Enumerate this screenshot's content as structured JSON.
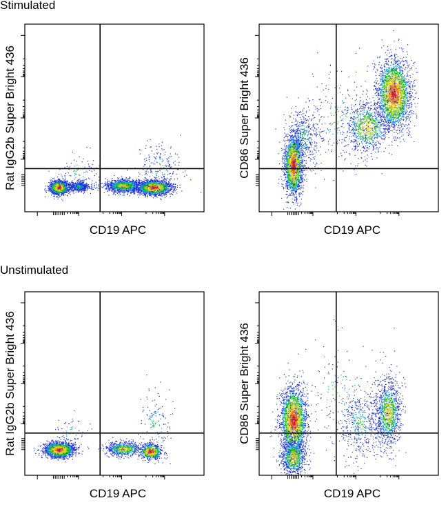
{
  "sections": [
    {
      "title": "Stimulated"
    },
    {
      "title": "Unstimulated"
    }
  ],
  "chart_data": [
    {
      "type": "scatter",
      "section": "Stimulated",
      "xlabel": "CD19 APC",
      "ylabel": "Rat IgG2b Super Bright 436",
      "scale": "log",
      "quadrant_gate": {
        "x": 0.42,
        "y": 0.77
      },
      "populations": [
        {
          "cx": 0.19,
          "cy": 0.87,
          "sx": 0.025,
          "sy": 0.018,
          "n": 1700,
          "density": "high"
        },
        {
          "cx": 0.3,
          "cy": 0.865,
          "sx": 0.03,
          "sy": 0.014,
          "n": 500,
          "density": "low"
        },
        {
          "cx": 0.55,
          "cy": 0.86,
          "sx": 0.05,
          "sy": 0.017,
          "n": 1200,
          "density": "medium"
        },
        {
          "cx": 0.72,
          "cy": 0.87,
          "sx": 0.045,
          "sy": 0.018,
          "n": 2000,
          "density": "high"
        },
        {
          "cx": 0.75,
          "cy": 0.76,
          "sx": 0.06,
          "sy": 0.06,
          "n": 200,
          "density": "low"
        },
        {
          "cx": 0.3,
          "cy": 0.78,
          "sx": 0.06,
          "sy": 0.05,
          "n": 80,
          "density": "low"
        }
      ]
    },
    {
      "type": "scatter",
      "section": "Stimulated",
      "xlabel": "CD19 APC",
      "ylabel": "CD86 Super Bright 436",
      "scale": "log",
      "quadrant_gate": {
        "x": 0.43,
        "y": 0.77
      },
      "populations": [
        {
          "cx": 0.19,
          "cy": 0.75,
          "sx": 0.025,
          "sy": 0.08,
          "n": 2200,
          "density": "high"
        },
        {
          "cx": 0.25,
          "cy": 0.6,
          "sx": 0.04,
          "sy": 0.08,
          "n": 400,
          "density": "low"
        },
        {
          "cx": 0.75,
          "cy": 0.37,
          "sx": 0.045,
          "sy": 0.09,
          "n": 2800,
          "density": "high"
        },
        {
          "cx": 0.6,
          "cy": 0.55,
          "sx": 0.06,
          "sy": 0.07,
          "n": 900,
          "density": "medium"
        },
        {
          "cx": 0.45,
          "cy": 0.5,
          "sx": 0.12,
          "sy": 0.14,
          "n": 250,
          "density": "low"
        }
      ]
    },
    {
      "type": "scatter",
      "section": "Unstimulated",
      "xlabel": "CD19 APC",
      "ylabel": "Rat IgG2b Super Bright 436",
      "scale": "log",
      "quadrant_gate": {
        "x": 0.42,
        "y": 0.77
      },
      "populations": [
        {
          "cx": 0.19,
          "cy": 0.86,
          "sx": 0.04,
          "sy": 0.02,
          "n": 2000,
          "density": "high"
        },
        {
          "cx": 0.55,
          "cy": 0.855,
          "sx": 0.05,
          "sy": 0.02,
          "n": 700,
          "density": "medium"
        },
        {
          "cx": 0.7,
          "cy": 0.87,
          "sx": 0.03,
          "sy": 0.02,
          "n": 700,
          "density": "high"
        },
        {
          "cx": 0.73,
          "cy": 0.72,
          "sx": 0.05,
          "sy": 0.09,
          "n": 150,
          "density": "low"
        },
        {
          "cx": 0.25,
          "cy": 0.76,
          "sx": 0.05,
          "sy": 0.05,
          "n": 60,
          "density": "low"
        }
      ]
    },
    {
      "type": "scatter",
      "section": "Unstimulated",
      "xlabel": "CD19 APC",
      "ylabel": "CD86 Super Bright 436",
      "scale": "log",
      "quadrant_gate": {
        "x": 0.43,
        "y": 0.77
      },
      "populations": [
        {
          "cx": 0.19,
          "cy": 0.7,
          "sx": 0.035,
          "sy": 0.09,
          "n": 2600,
          "density": "high"
        },
        {
          "cx": 0.19,
          "cy": 0.9,
          "sx": 0.035,
          "sy": 0.05,
          "n": 900,
          "density": "medium"
        },
        {
          "cx": 0.72,
          "cy": 0.66,
          "sx": 0.035,
          "sy": 0.09,
          "n": 1200,
          "density": "medium"
        },
        {
          "cx": 0.56,
          "cy": 0.72,
          "sx": 0.06,
          "sy": 0.1,
          "n": 500,
          "density": "low"
        },
        {
          "cx": 0.45,
          "cy": 0.55,
          "sx": 0.12,
          "sy": 0.15,
          "n": 150,
          "density": "low"
        }
      ]
    }
  ]
}
